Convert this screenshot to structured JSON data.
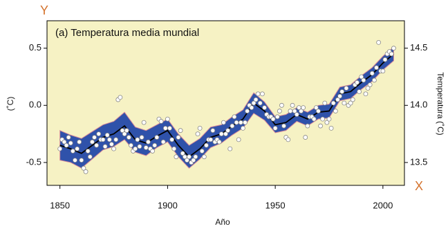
{
  "chart_data": {
    "type": "scatter",
    "title": "(a) Temperatura media mundial",
    "corner_y_label": "Y",
    "corner_x_label": "X",
    "xlabel": "Año",
    "ylabel": "(˚C)",
    "y2label": "Temperatura (˚C)",
    "xlim": [
      1844,
      2010
    ],
    "xticks": [
      1850,
      1900,
      1950,
      2000
    ],
    "ylim": [
      -0.7,
      0.74
    ],
    "yticks": [
      {
        "value": -0.5,
        "label": "-0.5"
      },
      {
        "value": 0,
        "label": "0.0"
      },
      {
        "value": 0.5,
        "label": "0.5"
      }
    ],
    "y2lim": [
      13.3,
      14.74
    ],
    "y2ticks": [
      13.5,
      {
        "value": 14,
        "label": "14.0"
      },
      14.5
    ],
    "background": "#f6f2c4",
    "point_color": "#ffffff",
    "line_color": "#000000",
    "band_color": "#2f52aa",
    "x": [
      1850,
      1851,
      1852,
      1853,
      1854,
      1855,
      1856,
      1857,
      1858,
      1859,
      1860,
      1861,
      1862,
      1863,
      1864,
      1865,
      1866,
      1867,
      1868,
      1869,
      1870,
      1871,
      1872,
      1873,
      1874,
      1875,
      1876,
      1877,
      1878,
      1879,
      1880,
      1881,
      1882,
      1883,
      1884,
      1885,
      1886,
      1887,
      1888,
      1889,
      1890,
      1891,
      1892,
      1893,
      1894,
      1895,
      1896,
      1897,
      1898,
      1899,
      1900,
      1901,
      1902,
      1903,
      1904,
      1905,
      1906,
      1907,
      1908,
      1909,
      1910,
      1911,
      1912,
      1913,
      1914,
      1915,
      1916,
      1917,
      1918,
      1919,
      1920,
      1921,
      1922,
      1923,
      1924,
      1925,
      1926,
      1927,
      1928,
      1929,
      1930,
      1931,
      1932,
      1933,
      1934,
      1935,
      1936,
      1937,
      1938,
      1939,
      1940,
      1941,
      1942,
      1943,
      1944,
      1945,
      1946,
      1947,
      1948,
      1949,
      1950,
      1951,
      1952,
      1953,
      1954,
      1955,
      1956,
      1957,
      1958,
      1959,
      1960,
      1961,
      1962,
      1963,
      1964,
      1965,
      1966,
      1967,
      1968,
      1969,
      1970,
      1971,
      1972,
      1973,
      1974,
      1975,
      1976,
      1977,
      1978,
      1979,
      1980,
      1981,
      1982,
      1983,
      1984,
      1985,
      1986,
      1987,
      1988,
      1989,
      1990,
      1991,
      1992,
      1993,
      1994,
      1995,
      1996,
      1997,
      1998,
      1999,
      2000,
      2001,
      2002,
      2003,
      2004,
      2005
    ],
    "values": [
      -0.38,
      -0.3,
      -0.32,
      -0.35,
      -0.28,
      -0.33,
      -0.4,
      -0.48,
      -0.38,
      -0.32,
      -0.48,
      -0.55,
      -0.58,
      -0.4,
      -0.45,
      -0.32,
      -0.28,
      -0.35,
      -0.25,
      -0.3,
      -0.3,
      -0.36,
      -0.26,
      -0.3,
      -0.34,
      -0.38,
      -0.3,
      0.05,
      0.07,
      -0.22,
      -0.25,
      -0.22,
      -0.28,
      -0.35,
      -0.4,
      -0.38,
      -0.3,
      -0.36,
      -0.28,
      -0.15,
      -0.37,
      -0.32,
      -0.38,
      -0.4,
      -0.35,
      -0.28,
      -0.12,
      -0.14,
      -0.32,
      -0.2,
      -0.12,
      -0.2,
      -0.3,
      -0.38,
      -0.45,
      -0.28,
      -0.22,
      -0.42,
      -0.45,
      -0.48,
      -0.45,
      -0.5,
      -0.48,
      -0.45,
      -0.25,
      -0.2,
      -0.4,
      -0.45,
      -0.35,
      -0.3,
      -0.3,
      -0.22,
      -0.32,
      -0.3,
      -0.32,
      -0.25,
      -0.15,
      -0.25,
      -0.22,
      -0.38,
      -0.18,
      -0.1,
      -0.15,
      -0.3,
      -0.15,
      -0.2,
      -0.15,
      -0.05,
      0.0,
      -0.02,
      0.02,
      0.05,
      0.1,
      0.02,
      0.1,
      -0.02,
      -0.08,
      -0.1,
      -0.1,
      -0.12,
      -0.2,
      -0.1,
      -0.05,
      0.0,
      -0.18,
      -0.28,
      -0.3,
      -0.05,
      0.0,
      -0.05,
      -0.08,
      -0.02,
      -0.05,
      -0.02,
      -0.28,
      -0.18,
      -0.1,
      -0.1,
      -0.12,
      -0.02,
      -0.05,
      -0.18,
      -0.12,
      0.02,
      -0.15,
      -0.12,
      -0.2,
      0.02,
      -0.05,
      0.05,
      0.08,
      0.12,
      0.02,
      0.15,
      0.0,
      0.02,
      0.05,
      0.18,
      0.2,
      0.12,
      0.25,
      0.22,
      0.1,
      0.15,
      0.18,
      0.28,
      0.22,
      0.33,
      0.55,
      0.3,
      0.3,
      0.4,
      0.45,
      0.47,
      0.45,
      0.5
    ],
    "smooth": {
      "x": [
        1850,
        1855,
        1860,
        1865,
        1870,
        1875,
        1880,
        1885,
        1890,
        1895,
        1900,
        1905,
        1910,
        1915,
        1920,
        1925,
        1930,
        1935,
        1940,
        1945,
        1950,
        1955,
        1960,
        1965,
        1970,
        1975,
        1980,
        1985,
        1990,
        1995,
        2000,
        2005
      ],
      "values": [
        -0.35,
        -0.38,
        -0.42,
        -0.35,
        -0.28,
        -0.25,
        -0.18,
        -0.3,
        -0.33,
        -0.27,
        -0.22,
        -0.35,
        -0.45,
        -0.38,
        -0.28,
        -0.25,
        -0.18,
        -0.12,
        0.02,
        -0.05,
        -0.17,
        -0.15,
        -0.08,
        -0.12,
        -0.06,
        -0.05,
        0.1,
        0.12,
        0.2,
        0.27,
        0.37,
        0.45
      ],
      "lower": [
        -0.48,
        -0.5,
        -0.55,
        -0.47,
        -0.39,
        -0.36,
        -0.3,
        -0.41,
        -0.44,
        -0.37,
        -0.32,
        -0.45,
        -0.55,
        -0.47,
        -0.37,
        -0.33,
        -0.26,
        -0.2,
        -0.07,
        -0.13,
        -0.24,
        -0.22,
        -0.14,
        -0.18,
        -0.12,
        -0.11,
        0.04,
        0.06,
        0.14,
        0.21,
        0.31,
        0.39
      ],
      "upper": [
        -0.22,
        -0.26,
        -0.29,
        -0.23,
        -0.17,
        -0.14,
        -0.06,
        -0.19,
        -0.22,
        -0.17,
        -0.12,
        -0.25,
        -0.35,
        -0.29,
        -0.19,
        -0.17,
        -0.1,
        -0.04,
        0.11,
        0.03,
        -0.1,
        -0.08,
        -0.02,
        -0.06,
        0.0,
        0.01,
        0.16,
        0.18,
        0.26,
        0.33,
        0.43,
        0.51
      ]
    }
  }
}
